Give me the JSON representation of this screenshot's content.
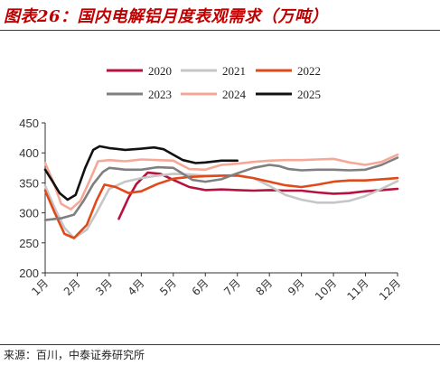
{
  "header": {
    "title": "图表26：国内电解铝月度表观需求（万吨）"
  },
  "footer": {
    "source": "来源：百川，中泰证券研究所"
  },
  "colors": {
    "title": "#c00000",
    "rule": "#c00000"
  },
  "chart_data": {
    "type": "line",
    "categories": [
      "1月",
      "2月",
      "3月",
      "4月",
      "5月",
      "6月",
      "7月",
      "8月",
      "9月",
      "10月",
      "11月",
      "12月"
    ],
    "ylim": [
      200,
      450
    ],
    "yticks": [
      200,
      250,
      300,
      350,
      400,
      450
    ],
    "grid": false,
    "legend_position": "top",
    "series": [
      {
        "name": "2020",
        "color": "#b5123f",
        "points": [
          [
            3.3,
            290
          ],
          [
            3.6,
            325
          ],
          [
            3.85,
            348
          ],
          [
            4.2,
            367
          ],
          [
            4.6,
            365
          ],
          [
            5.0,
            355
          ],
          [
            5.5,
            343
          ],
          [
            6.0,
            338
          ],
          [
            6.5,
            339
          ],
          [
            7.0,
            338
          ],
          [
            7.5,
            337
          ],
          [
            8.0,
            338
          ],
          [
            8.5,
            337
          ],
          [
            9.0,
            337
          ],
          [
            9.5,
            334
          ],
          [
            10.0,
            332
          ],
          [
            10.5,
            333
          ],
          [
            11.0,
            336
          ],
          [
            11.5,
            338
          ],
          [
            12.0,
            340
          ]
        ]
      },
      {
        "name": "2021",
        "color": "#c6c6c6",
        "points": [
          [
            1.0,
            345
          ],
          [
            1.3,
            308
          ],
          [
            1.6,
            275
          ],
          [
            1.9,
            258
          ],
          [
            2.3,
            272
          ],
          [
            2.6,
            300
          ],
          [
            3.0,
            340
          ],
          [
            3.5,
            352
          ],
          [
            4.0,
            358
          ],
          [
            4.5,
            362
          ],
          [
            5.0,
            365
          ],
          [
            5.5,
            364
          ],
          [
            6.0,
            362
          ],
          [
            6.5,
            362
          ],
          [
            7.0,
            363
          ],
          [
            7.5,
            358
          ],
          [
            8.0,
            345
          ],
          [
            8.5,
            330
          ],
          [
            9.0,
            322
          ],
          [
            9.5,
            317
          ],
          [
            10.0,
            317
          ],
          [
            10.5,
            320
          ],
          [
            11.0,
            328
          ],
          [
            11.5,
            340
          ],
          [
            12.0,
            353
          ]
        ]
      },
      {
        "name": "2022",
        "color": "#e0491a",
        "points": [
          [
            1.0,
            337
          ],
          [
            1.3,
            300
          ],
          [
            1.6,
            265
          ],
          [
            1.9,
            258
          ],
          [
            2.3,
            280
          ],
          [
            2.6,
            320
          ],
          [
            2.85,
            347
          ],
          [
            3.2,
            343
          ],
          [
            3.6,
            333
          ],
          [
            4.0,
            336
          ],
          [
            4.5,
            348
          ],
          [
            5.0,
            357
          ],
          [
            5.5,
            360
          ],
          [
            6.0,
            361
          ],
          [
            6.5,
            362
          ],
          [
            7.0,
            362
          ],
          [
            7.5,
            358
          ],
          [
            8.0,
            352
          ],
          [
            8.5,
            346
          ],
          [
            9.0,
            343
          ],
          [
            9.5,
            347
          ],
          [
            10.0,
            352
          ],
          [
            10.5,
            354
          ],
          [
            11.0,
            354
          ],
          [
            11.5,
            356
          ],
          [
            12.0,
            358
          ]
        ]
      },
      {
        "name": "2023",
        "color": "#7f7f7f",
        "points": [
          [
            1.0,
            288
          ],
          [
            1.5,
            291
          ],
          [
            1.9,
            297
          ],
          [
            2.2,
            320
          ],
          [
            2.5,
            348
          ],
          [
            2.8,
            368
          ],
          [
            3.0,
            375
          ],
          [
            3.5,
            372
          ],
          [
            4.0,
            372
          ],
          [
            4.5,
            376
          ],
          [
            5.0,
            375
          ],
          [
            5.3,
            365
          ],
          [
            5.6,
            355
          ],
          [
            6.0,
            352
          ],
          [
            6.5,
            356
          ],
          [
            7.0,
            366
          ],
          [
            7.5,
            375
          ],
          [
            8.0,
            380
          ],
          [
            8.3,
            378
          ],
          [
            8.6,
            373
          ],
          [
            9.0,
            371
          ],
          [
            9.5,
            372
          ],
          [
            10.0,
            372
          ],
          [
            10.5,
            371
          ],
          [
            11.0,
            372
          ],
          [
            11.5,
            380
          ],
          [
            12.0,
            392
          ]
        ]
      },
      {
        "name": "2024",
        "color": "#f4a898",
        "points": [
          [
            1.0,
            383
          ],
          [
            1.25,
            352
          ],
          [
            1.5,
            315
          ],
          [
            1.8,
            306
          ],
          [
            2.1,
            320
          ],
          [
            2.4,
            355
          ],
          [
            2.65,
            386
          ],
          [
            3.0,
            388
          ],
          [
            3.5,
            386
          ],
          [
            4.0,
            389
          ],
          [
            4.5,
            388
          ],
          [
            5.0,
            387
          ],
          [
            5.5,
            373
          ],
          [
            6.0,
            372
          ],
          [
            6.5,
            380
          ],
          [
            7.0,
            382
          ],
          [
            7.5,
            385
          ],
          [
            8.0,
            387
          ],
          [
            8.5,
            388
          ],
          [
            9.0,
            388
          ],
          [
            9.5,
            389
          ],
          [
            10.0,
            390
          ],
          [
            10.5,
            384
          ],
          [
            11.0,
            380
          ],
          [
            11.5,
            385
          ],
          [
            12.0,
            397
          ]
        ]
      },
      {
        "name": "2025",
        "color": "#111111",
        "points": [
          [
            1.0,
            372
          ],
          [
            1.2,
            355
          ],
          [
            1.45,
            333
          ],
          [
            1.7,
            322
          ],
          [
            1.95,
            330
          ],
          [
            2.25,
            375
          ],
          [
            2.5,
            405
          ],
          [
            2.7,
            411
          ],
          [
            3.0,
            408
          ],
          [
            3.5,
            405
          ],
          [
            4.0,
            407
          ],
          [
            4.4,
            409
          ],
          [
            4.7,
            406
          ],
          [
            5.0,
            397
          ],
          [
            5.3,
            388
          ],
          [
            5.7,
            383
          ],
          [
            6.0,
            384
          ],
          [
            6.5,
            387
          ],
          [
            7.0,
            387
          ]
        ]
      }
    ]
  }
}
